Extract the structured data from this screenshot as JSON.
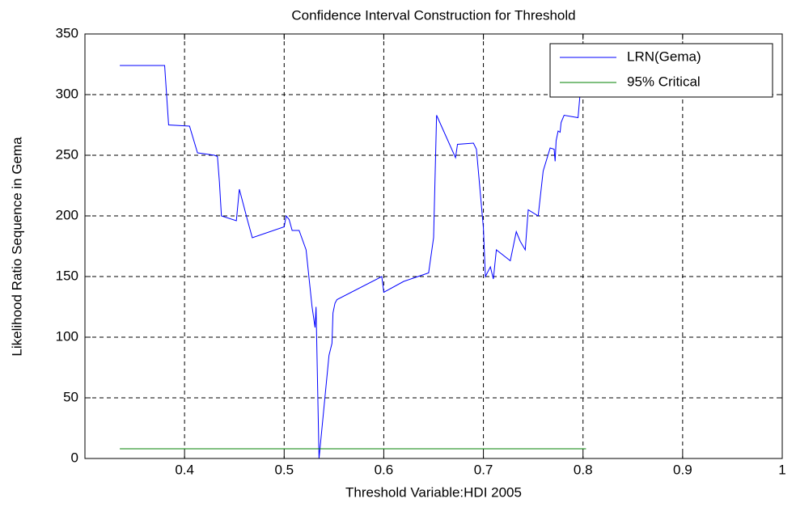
{
  "chart_data": {
    "type": "line",
    "title": "Confidence Interval Construction for Threshold",
    "x_label": "Threshold Variable:HDI 2005",
    "y_label": "Likelihood Ratio Sequence in Gema",
    "xlim": [
      0.3,
      1
    ],
    "xticks": [
      0.4,
      0.5,
      0.6,
      0.7,
      0.8,
      0.9,
      1
    ],
    "ylim": [
      0,
      350
    ],
    "yticks": [
      0,
      50,
      100,
      150,
      200,
      250,
      300,
      350
    ],
    "grid": true,
    "legend": "top-right",
    "series": [
      {
        "name": "LRN(Gema)",
        "color": "#0000ff",
        "x": [
          0.335,
          0.38,
          0.384,
          0.405,
          0.413,
          0.43,
          0.433,
          0.435,
          0.437,
          0.452,
          0.455,
          0.463,
          0.468,
          0.5,
          0.502,
          0.505,
          0.508,
          0.515,
          0.522,
          0.528,
          0.531,
          0.532,
          0.535,
          0.545,
          0.548,
          0.549,
          0.551,
          0.553,
          0.598,
          0.6,
          0.62,
          0.645,
          0.65,
          0.653,
          0.672,
          0.674,
          0.69,
          0.693,
          0.7,
          0.702,
          0.707,
          0.71,
          0.713,
          0.727,
          0.733,
          0.737,
          0.742,
          0.745,
          0.755,
          0.76,
          0.767,
          0.771,
          0.772,
          0.773,
          0.775,
          0.777,
          0.778,
          0.781,
          0.795,
          0.797,
          0.8
        ],
        "values": [
          324,
          324,
          275,
          274,
          252,
          250,
          249,
          228,
          200,
          196,
          222,
          197,
          182,
          191,
          200,
          197,
          188,
          188,
          172,
          125,
          108,
          125,
          0,
          85,
          95,
          120,
          128,
          131,
          150,
          137,
          146,
          153,
          182,
          283,
          248,
          259,
          260,
          255,
          190,
          150,
          158,
          148,
          172,
          163,
          187,
          179,
          172,
          205,
          200,
          237,
          256,
          255,
          245,
          262,
          270,
          269,
          277,
          283,
          281,
          300,
          311
        ]
      },
      {
        "name": "95% Critical",
        "color": "#008000",
        "x": [
          0.335,
          0.803
        ],
        "values": [
          8,
          8
        ]
      }
    ]
  }
}
